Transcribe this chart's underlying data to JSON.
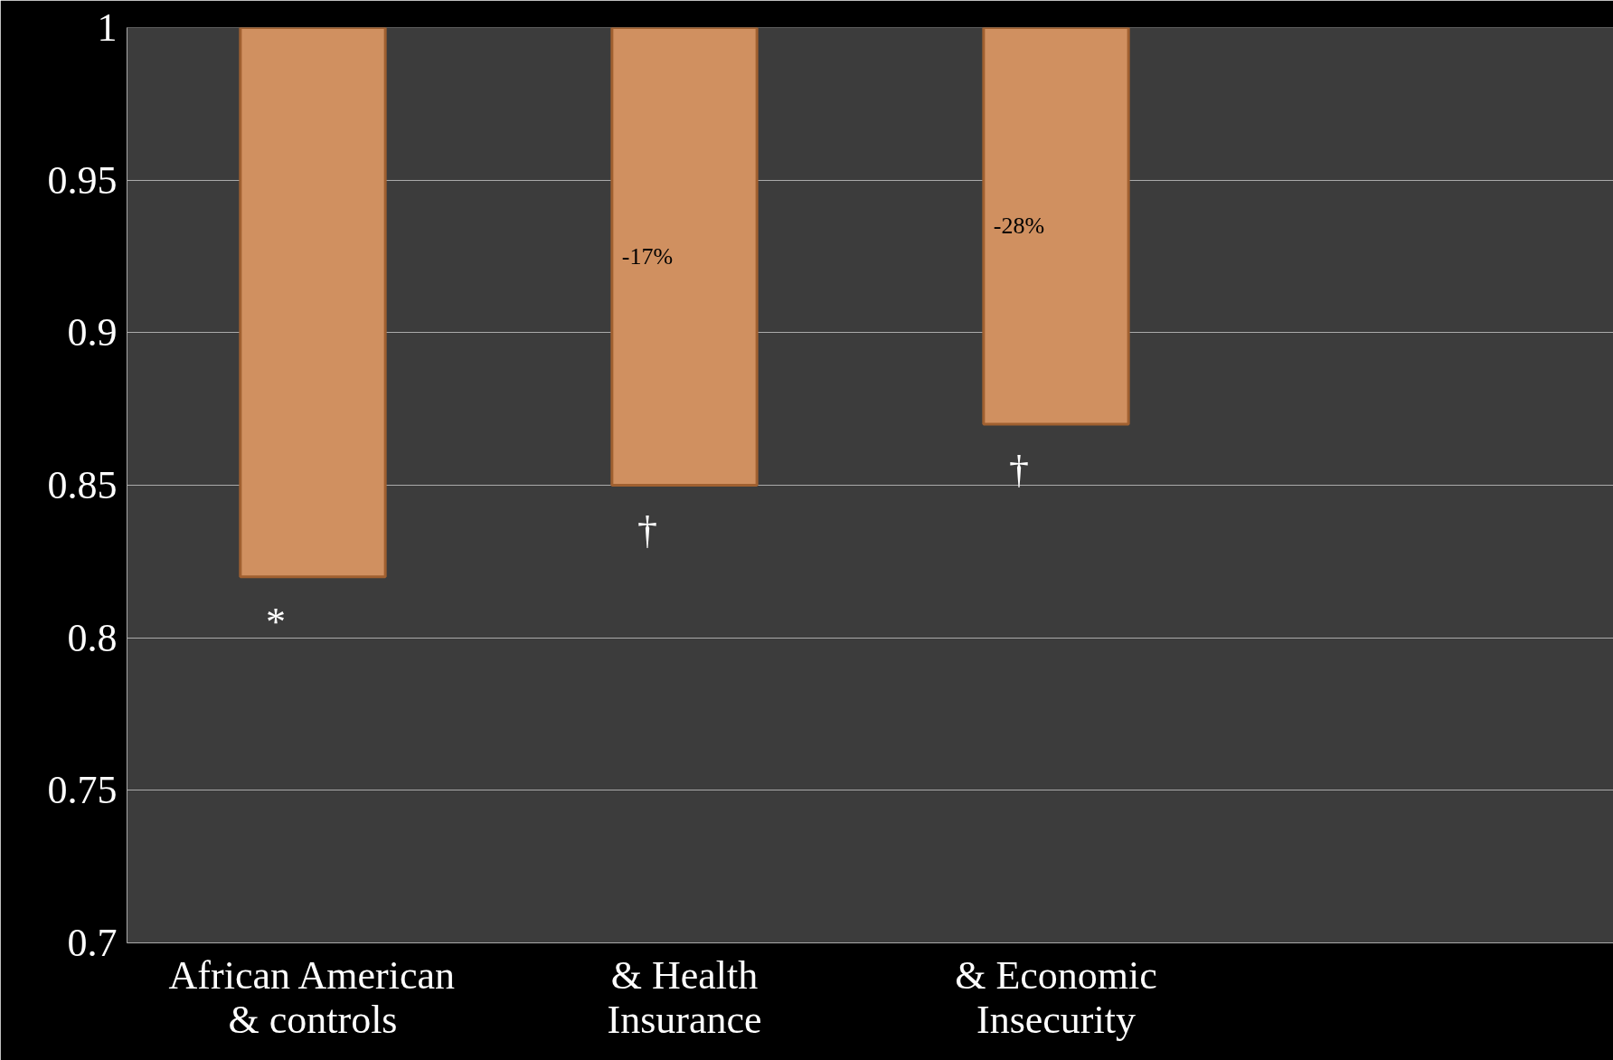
{
  "chart_data": {
    "type": "bar",
    "categories": [
      "African American\n& controls",
      "& Health\nInsurance",
      "& Economic\nInsecurity",
      null
    ],
    "values": [
      0.18,
      0.15,
      0.13,
      null
    ],
    "base": [
      0.82,
      0.85,
      0.87,
      null
    ],
    "color": "#d09060",
    "ylim": [
      0.7,
      1
    ],
    "yticks": [
      0.7,
      0.75,
      0.8,
      0.85,
      0.9,
      0.95,
      1
    ],
    "grid": "y",
    "annotations": [
      {
        "text": "*",
        "x": "African American\n& controls",
        "y": 0.82
      },
      "-17%",
      {
        "text": "†",
        "x": "& Health\nInsurance",
        "y": 0.85
      },
      "-28%",
      {
        "text": "†",
        "x": "& Economic\nInsecurity",
        "y": 0.87
      }
    ]
  }
}
